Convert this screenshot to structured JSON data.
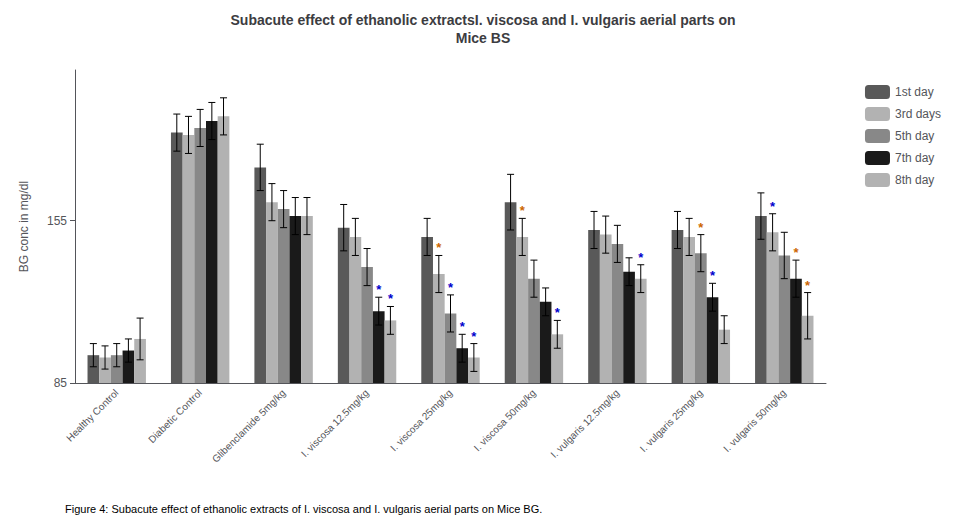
{
  "chart_data": {
    "type": "bar",
    "title": "Subacute effect of ethanolic extractsI. viscosa and I. vulgaris aerial parts on\nMice BS",
    "caption": "Figure 4: Subacute effect of ethanolic extracts of I. viscosa and I. vulgaris aerial parts on Mice BG.",
    "ylabel": "BG conc in mg/dl",
    "categories": [
      "Healthy Control",
      "Diabetic Control",
      "Glibenclamide 5mg/kg",
      "I. viscosa 12.5mg/kg",
      "I. viscosa 25mg/kg",
      "I. viscosa 50mg/kg",
      "I. vulgaris 12.5mg/kg",
      "I. vulgaris 25mg/kg",
      "I. vulgaris 50mg/kg"
    ],
    "series": [
      {
        "name": "1st day",
        "color": "#595959",
        "values": [
          97,
          193,
          178,
          152,
          148,
          163,
          151,
          151,
          157
        ],
        "errors": [
          5,
          8,
          10,
          10,
          8,
          12,
          8,
          8,
          10
        ]
      },
      {
        "name": "3rd days",
        "color": "#b2b2b2",
        "values": [
          96,
          192,
          163,
          148,
          132,
          148,
          149,
          148,
          150
        ],
        "errors": [
          5,
          8,
          8,
          8,
          8,
          8,
          8,
          8,
          8
        ]
      },
      {
        "name": "5th day",
        "color": "#888888",
        "values": [
          97,
          195,
          160,
          135,
          115,
          130,
          145,
          141,
          140
        ],
        "errors": [
          5,
          8,
          8,
          8,
          8,
          8,
          8,
          8,
          10
        ]
      },
      {
        "name": "7th day",
        "color": "#1a1a1a",
        "values": [
          99,
          198,
          157,
          116,
          100,
          120,
          133,
          122,
          130
        ],
        "errors": [
          5,
          8,
          8,
          6,
          6,
          6,
          6,
          6,
          8
        ]
      },
      {
        "name": "8th day",
        "color": "#b2b2b2",
        "values": [
          104,
          200,
          157,
          112,
          96,
          106,
          130,
          108,
          114
        ],
        "errors": [
          9,
          8,
          8,
          6,
          6,
          6,
          6,
          6,
          10
        ]
      }
    ],
    "annotations": [
      {
        "text": "*",
        "category": "I. viscosa 12.5mg/kg",
        "series": "7th day",
        "color": "#0000cc"
      },
      {
        "text": "*",
        "category": "I. viscosa 12.5mg/kg",
        "series": "8th day",
        "color": "#0000cc"
      },
      {
        "text": "*",
        "category": "I. viscosa 25mg/kg",
        "series": "3rd days",
        "color": "#cc6600"
      },
      {
        "text": "*",
        "category": "I. viscosa 25mg/kg",
        "series": "5th day",
        "color": "#0000cc"
      },
      {
        "text": "*",
        "category": "I. viscosa 25mg/kg",
        "series": "7th day",
        "color": "#0000cc"
      },
      {
        "text": "*",
        "category": "I. viscosa 25mg/kg",
        "series": "8th day",
        "color": "#0000cc"
      },
      {
        "text": "*",
        "category": "I. viscosa 50mg/kg",
        "series": "3rd days",
        "color": "#cc6600"
      },
      {
        "text": "*",
        "category": "I. viscosa 50mg/kg",
        "series": "8th day",
        "color": "#0000cc"
      },
      {
        "text": "*",
        "category": "I. vulgaris 12.5mg/kg",
        "series": "8th day",
        "color": "#0000cc"
      },
      {
        "text": "*",
        "category": "I. vulgaris 25mg/kg",
        "series": "5th day",
        "color": "#cc6600"
      },
      {
        "text": "*",
        "category": "I. vulgaris 25mg/kg",
        "series": "7th day",
        "color": "#0000cc"
      },
      {
        "text": "*",
        "category": "I. vulgaris 50mg/kg",
        "series": "3rd days",
        "color": "#0000cc"
      },
      {
        "text": "*",
        "category": "I. vulgaris 50mg/kg",
        "series": "7th day",
        "color": "#cc6600"
      },
      {
        "text": "*",
        "category": "I. vulgaris 50mg/kg",
        "series": "8th day",
        "color": "#cc6600"
      }
    ],
    "ylim": [
      85,
      220
    ],
    "yticks": [
      85,
      155
    ],
    "grid": false,
    "legend": "right"
  }
}
